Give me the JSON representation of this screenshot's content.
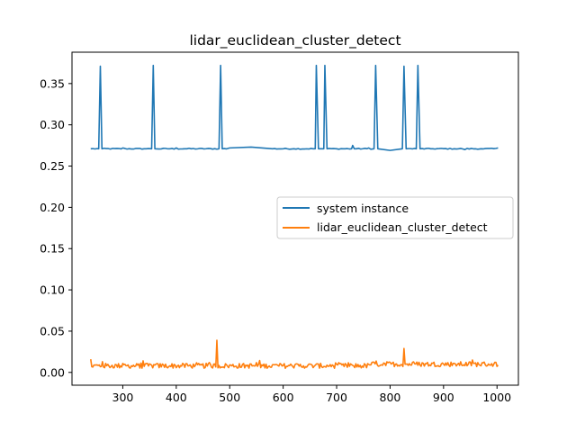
{
  "chart_data": {
    "type": "line",
    "title": "lidar_euclidean_cluster_detect",
    "xlabel": "",
    "ylabel": "",
    "xlim": [
      205,
      1040
    ],
    "ylim": [
      -0.0155,
      0.388
    ],
    "x_ticks": [
      300,
      400,
      500,
      600,
      700,
      800,
      900,
      1000
    ],
    "y_ticks": [
      0.0,
      0.05,
      0.1,
      0.15,
      0.2,
      0.25,
      0.3,
      0.35
    ],
    "y_tick_labels": [
      "0.00",
      "0.05",
      "0.10",
      "0.15",
      "0.20",
      "0.25",
      "0.30",
      "0.35"
    ],
    "legend": {
      "placement": "center-right"
    },
    "grid": false,
    "series": [
      {
        "name": "system instance",
        "color": "#1f77b4",
        "baseline": 0.271,
        "x_range": [
          240,
          1002
        ],
        "points": [
          [
            240,
            0.271
          ],
          [
            255,
            0.271
          ],
          [
            258,
            0.371
          ],
          [
            261,
            0.271
          ],
          [
            300,
            0.272
          ],
          [
            340,
            0.271
          ],
          [
            354,
            0.271
          ],
          [
            357,
            0.372
          ],
          [
            360,
            0.271
          ],
          [
            400,
            0.272
          ],
          [
            420,
            0.271
          ],
          [
            480,
            0.271
          ],
          [
            483,
            0.372
          ],
          [
            486,
            0.271
          ],
          [
            500,
            0.272
          ],
          [
            540,
            0.273
          ],
          [
            580,
            0.271
          ],
          [
            620,
            0.271
          ],
          [
            660,
            0.271
          ],
          [
            662,
            0.372
          ],
          [
            666,
            0.271
          ],
          [
            676,
            0.271
          ],
          [
            678,
            0.372
          ],
          [
            682,
            0.271
          ],
          [
            700,
            0.271
          ],
          [
            728,
            0.271
          ],
          [
            730,
            0.275
          ],
          [
            733,
            0.271
          ],
          [
            760,
            0.272
          ],
          [
            770,
            0.271
          ],
          [
            773,
            0.372
          ],
          [
            777,
            0.271
          ],
          [
            800,
            0.269
          ],
          [
            823,
            0.271
          ],
          [
            826,
            0.371
          ],
          [
            830,
            0.271
          ],
          [
            849,
            0.271
          ],
          [
            852,
            0.372
          ],
          [
            856,
            0.271
          ],
          [
            880,
            0.271
          ],
          [
            920,
            0.271
          ],
          [
            940,
            0.27
          ],
          [
            970,
            0.271
          ],
          [
            1002,
            0.272
          ]
        ]
      },
      {
        "name": "lidar_euclidean_cluster_detect",
        "color": "#ff7f0e",
        "baseline": 0.008,
        "x_range": [
          240,
          1002
        ],
        "peaks": [
          [
            240,
            0.016
          ],
          [
            262,
            0.013
          ],
          [
            338,
            0.014
          ],
          [
            465,
            0.016
          ],
          [
            476,
            0.039
          ],
          [
            725,
            0.031
          ],
          [
            826,
            0.029
          ],
          [
            995,
            0.029
          ]
        ]
      }
    ]
  }
}
